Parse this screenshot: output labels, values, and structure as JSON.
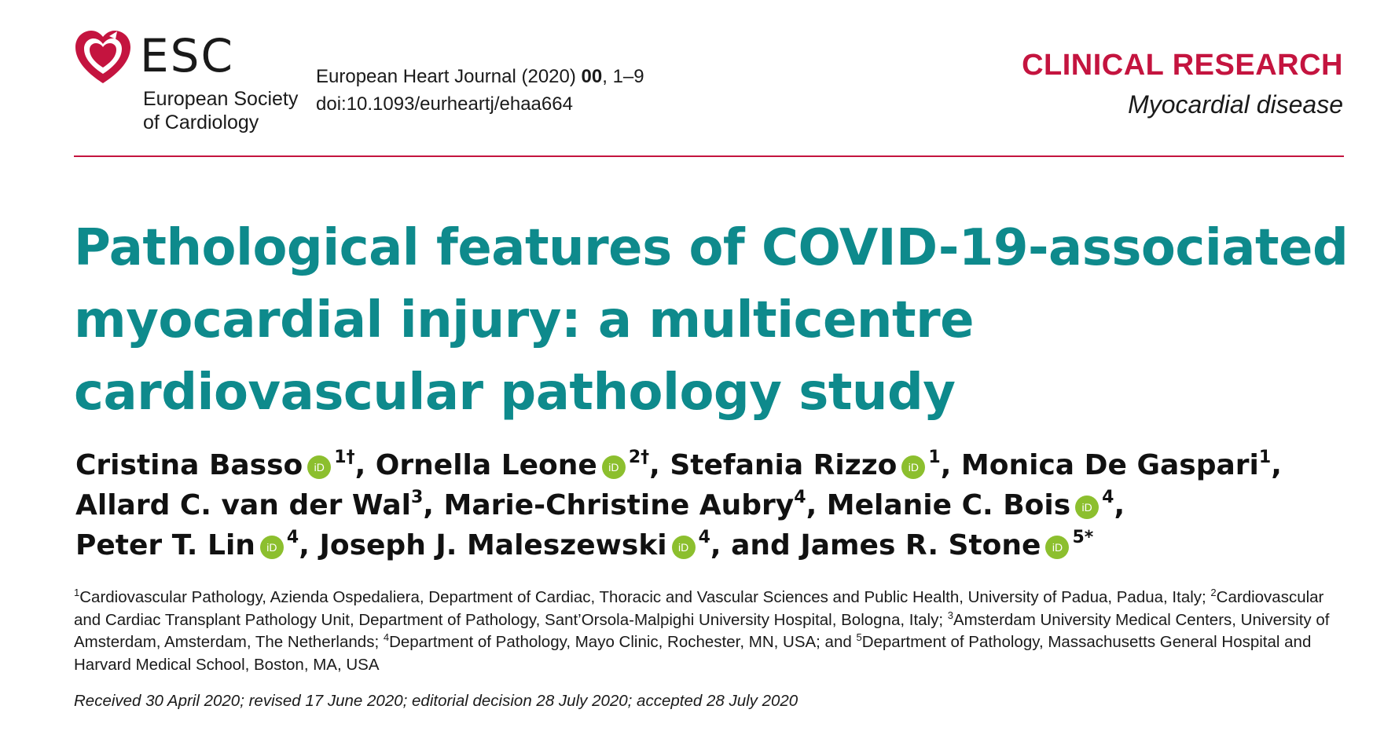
{
  "brand": {
    "abbr": "ESC",
    "society_line1": "European Society",
    "society_line2": "of Cardiology",
    "color": "#c4143f"
  },
  "journal": {
    "name": "European Heart Journal (2020) ",
    "volume": "00",
    "pages": ", 1–9",
    "doi": "doi:10.1093/eurheartj/ehaa664"
  },
  "section": {
    "type": "CLINICAL RESEARCH",
    "subtype": "Myocardial disease"
  },
  "title": "Pathological features of COVID-19-associated myocardial injury: a multicentre cardiovascular pathology study",
  "orcid_icon": "orcid-icon",
  "authors": [
    {
      "name": "Cristina Basso",
      "sup": "1†",
      "orcid": true
    },
    {
      "name": "Ornella Leone",
      "sup": "2†",
      "orcid": true
    },
    {
      "name": "Stefania Rizzo",
      "sup": "1",
      "orcid": true
    },
    {
      "name": "Monica  De Gaspari",
      "sup": "1",
      "orcid": false
    },
    {
      "name": "Allard C.  van der Wal",
      "sup": "3",
      "orcid": false
    },
    {
      "name": "Marie-Christine Aubry",
      "sup": "4",
      "orcid": false
    },
    {
      "name": "Melanie C. Bois",
      "sup": "4",
      "orcid": true
    },
    {
      "name": "Peter T. Lin",
      "sup": "4",
      "orcid": true
    },
    {
      "name": "Joseph J. Maleszewski",
      "sup": "4",
      "orcid": true
    },
    {
      "name": "James R. Stone",
      "sup": "5*",
      "orcid": true
    }
  ],
  "authors_sep": {
    "comma": ",",
    "and": ", and"
  },
  "affiliations": [
    {
      "sup": "1",
      "text": "Cardiovascular Pathology, Azienda Ospedaliera, Department of Cardiac, Thoracic and Vascular Sciences and Public Health, University of Padua, Padua, Italy; "
    },
    {
      "sup": "2",
      "text": "Cardiovascular and Cardiac Transplant Pathology Unit, Department of Pathology, Sant’Orsola-Malpighi University Hospital, Bologna, Italy; "
    },
    {
      "sup": "3",
      "text": "Amsterdam University Medical Centers, University of Amsterdam, Amsterdam, The Netherlands; "
    },
    {
      "sup": "4",
      "text": "Department of Pathology, Mayo Clinic, Rochester, MN, USA; and "
    },
    {
      "sup": "5",
      "text": "Department of Pathology, Massachusetts General Hospital and Harvard Medical School, Boston, MA, USA"
    }
  ],
  "dates": "Received 30 April 2020; revised 17 June 2020; editorial decision 28 July 2020; accepted 28 July 2020",
  "colors": {
    "title": "#0e8a8c",
    "accent": "#c4143f",
    "orcid": "#8cbf2e"
  }
}
